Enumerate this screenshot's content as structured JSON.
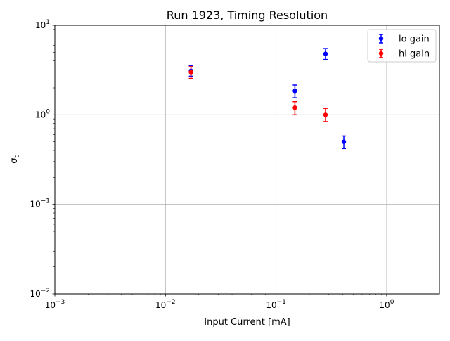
{
  "chart_data": {
    "type": "scatter",
    "title": "Run 1923, Timing Resolution",
    "xlabel": "Input Current [mA]",
    "ylabel": "σ",
    "ylabel_sub": "t",
    "x_scale": "log",
    "y_scale": "log",
    "xlim": [
      0.001,
      3
    ],
    "ylim": [
      0.01,
      10
    ],
    "grid": true,
    "legend_position": "top-right",
    "x_ticks": [
      {
        "value": 0.001,
        "base": "10",
        "exp": "−3"
      },
      {
        "value": 0.01,
        "base": "10",
        "exp": "−2"
      },
      {
        "value": 0.1,
        "base": "10",
        "exp": "−1"
      },
      {
        "value": 1,
        "base": "10",
        "exp": "0"
      }
    ],
    "y_ticks": [
      {
        "value": 0.01,
        "base": "10",
        "exp": "−2"
      },
      {
        "value": 0.1,
        "base": "10",
        "exp": "−1"
      },
      {
        "value": 1,
        "base": "10",
        "exp": "0"
      },
      {
        "value": 10,
        "base": "10",
        "exp": "1"
      }
    ],
    "series": [
      {
        "name": "lo gain",
        "color": "#0000ff",
        "points": [
          {
            "x": 0.017,
            "y": 3.1,
            "yerr_low": 2.7,
            "yerr_high": 3.55
          },
          {
            "x": 0.148,
            "y": 1.85,
            "yerr_low": 1.55,
            "yerr_high": 2.15
          },
          {
            "x": 0.28,
            "y": 4.8,
            "yerr_low": 4.15,
            "yerr_high": 5.5
          },
          {
            "x": 0.41,
            "y": 0.5,
            "yerr_low": 0.42,
            "yerr_high": 0.58
          }
        ]
      },
      {
        "name": "hi gain",
        "color": "#ff0000",
        "points": [
          {
            "x": 0.017,
            "y": 3.0,
            "yerr_low": 2.55,
            "yerr_high": 3.45
          },
          {
            "x": 0.148,
            "y": 1.2,
            "yerr_low": 1.0,
            "yerr_high": 1.4
          },
          {
            "x": 0.28,
            "y": 1.0,
            "yerr_low": 0.84,
            "yerr_high": 1.18
          }
        ]
      }
    ]
  }
}
